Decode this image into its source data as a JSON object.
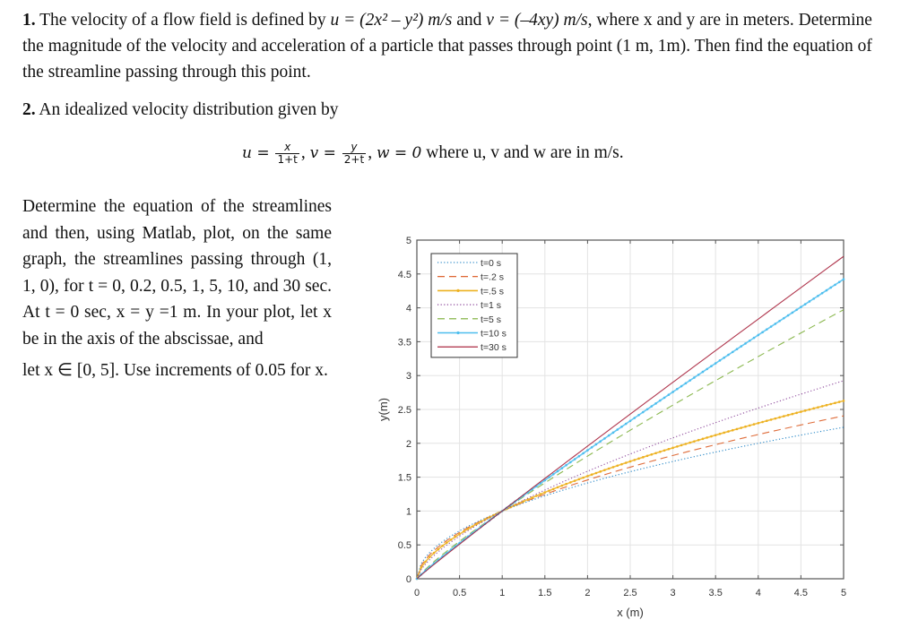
{
  "problem1": {
    "number": "1.",
    "text_a": " The velocity of a flow field is defined by ",
    "u_expr": "u = (2x² – y²) m/s",
    "text_b": " and ",
    "v_expr": "v = (–4xy) m/s",
    "text_c": ", where x and y are in meters. Determine the magnitude of the velocity and acceleration of a particle that passes through point (1 m, 1m). Then find the equation of the streamline passing through this point."
  },
  "problem2": {
    "number": "2.",
    "intro": " An idealized velocity distribution given by",
    "equation": {
      "u_lhs": "u =",
      "u_num": "x",
      "u_den": "1+t",
      "v_lhs": "v =",
      "v_num": "y",
      "v_den": "2+t",
      "w_part": "w = 0",
      "tail": " where u, v and w are in m/s."
    },
    "body": "Determine the equation of the streamlines and then, using Matlab, plot, on the same graph, the streamlines passing through (1, 1, 0), for t = 0, 0.2, 0.5, 1, 5, 10, and 30 sec. At t = 0 sec, x = y =1 m. In your plot, let x be in the axis of the abscissae, and",
    "body_end": "let x ∈ [0, 5]. Use increments of 0.05 for x."
  },
  "chart_data": {
    "type": "line",
    "title": "",
    "xlabel": "x (m)",
    "ylabel": "y(m)",
    "xlim": [
      0,
      5
    ],
    "ylim": [
      0,
      5
    ],
    "xticks": [
      "0",
      "0.5",
      "1",
      "1.5",
      "2",
      "2.5",
      "3",
      "3.5",
      "4",
      "4.5",
      "5"
    ],
    "yticks": [
      "0",
      "0.5",
      "1",
      "1.5",
      "2",
      "2.5",
      "3",
      "3.5",
      "4",
      "4.5",
      "5"
    ],
    "grid": true,
    "legend_position": "upper-left",
    "x": [
      0,
      0.5,
      1,
      1.5,
      2,
      2.5,
      3,
      3.5,
      4,
      4.5,
      5
    ],
    "series": [
      {
        "name": "t=0 s",
        "color": "#0072BD",
        "style": "dotted",
        "values": [
          0,
          0.707,
          1,
          1.225,
          1.414,
          1.581,
          1.732,
          1.871,
          2.0,
          2.121,
          2.236
        ]
      },
      {
        "name": "t=.2 s",
        "color": "#D95319",
        "style": "dashed",
        "values": [
          0,
          0.685,
          1,
          1.247,
          1.459,
          1.648,
          1.821,
          1.98,
          2.13,
          2.271,
          2.405
        ]
      },
      {
        "name": "t=.5 s",
        "color": "#EDB120",
        "style": "solid-marker",
        "values": [
          0,
          0.66,
          1,
          1.275,
          1.516,
          1.733,
          1.933,
          2.121,
          2.297,
          2.464,
          2.627
        ]
      },
      {
        "name": "t=1 s",
        "color": "#7E2F8E",
        "style": "dotted",
        "values": [
          0,
          0.63,
          1,
          1.31,
          1.587,
          1.842,
          2.08,
          2.305,
          2.52,
          2.726,
          2.924
        ]
      },
      {
        "name": "t=5 s",
        "color": "#77AC30",
        "style": "dashed",
        "values": [
          0,
          0.552,
          1,
          1.415,
          1.811,
          2.192,
          2.561,
          2.92,
          3.27,
          3.614,
          3.972
        ]
      },
      {
        "name": "t=10 s",
        "color": "#4DBEEE",
        "style": "solid-marker",
        "values": [
          0,
          0.528,
          1,
          1.451,
          1.89,
          2.318,
          2.738,
          3.151,
          3.558,
          3.962,
          4.422
        ]
      },
      {
        "name": "t=30 s",
        "color": "#A2142F",
        "style": "solid",
        "values": [
          0,
          0.511,
          1,
          1.479,
          1.957,
          2.428,
          2.894,
          3.361,
          3.823,
          4.283,
          4.76
        ]
      }
    ]
  }
}
